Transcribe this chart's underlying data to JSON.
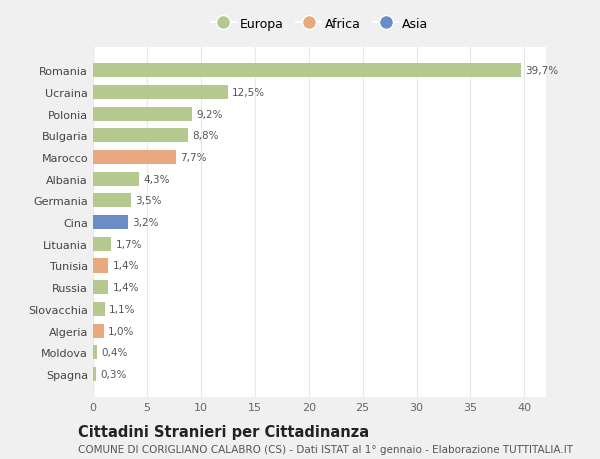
{
  "countries": [
    "Romania",
    "Ucraina",
    "Polonia",
    "Bulgaria",
    "Marocco",
    "Albania",
    "Germania",
    "Cina",
    "Lituania",
    "Tunisia",
    "Russia",
    "Slovacchia",
    "Algeria",
    "Moldova",
    "Spagna"
  ],
  "values": [
    39.7,
    12.5,
    9.2,
    8.8,
    7.7,
    4.3,
    3.5,
    3.2,
    1.7,
    1.4,
    1.4,
    1.1,
    1.0,
    0.4,
    0.3
  ],
  "labels": [
    "39,7%",
    "12,5%",
    "9,2%",
    "8,8%",
    "7,7%",
    "4,3%",
    "3,5%",
    "3,2%",
    "1,7%",
    "1,4%",
    "1,4%",
    "1,1%",
    "1,0%",
    "0,4%",
    "0,3%"
  ],
  "continent": [
    "Europa",
    "Europa",
    "Europa",
    "Europa",
    "Africa",
    "Europa",
    "Europa",
    "Asia",
    "Europa",
    "Africa",
    "Europa",
    "Europa",
    "Africa",
    "Europa",
    "Europa"
  ],
  "colors": {
    "Europa": "#b5c98e",
    "Africa": "#e8a97e",
    "Asia": "#6b8cc7"
  },
  "xlim": [
    0,
    42
  ],
  "xticks": [
    0,
    5,
    10,
    15,
    20,
    25,
    30,
    35,
    40
  ],
  "title": "Cittadini Stranieri per Cittadinanza",
  "subtitle": "COMUNE DI CORIGLIANO CALABRO (CS) - Dati ISTAT al 1° gennaio - Elaborazione TUTTITALIA.IT",
  "fig_bg_color": "#f0f0f0",
  "plot_bg_color": "#ffffff",
  "grid_color": "#e8e8e8",
  "title_fontsize": 10.5,
  "subtitle_fontsize": 7.5,
  "label_fontsize": 7.5,
  "tick_fontsize": 8
}
